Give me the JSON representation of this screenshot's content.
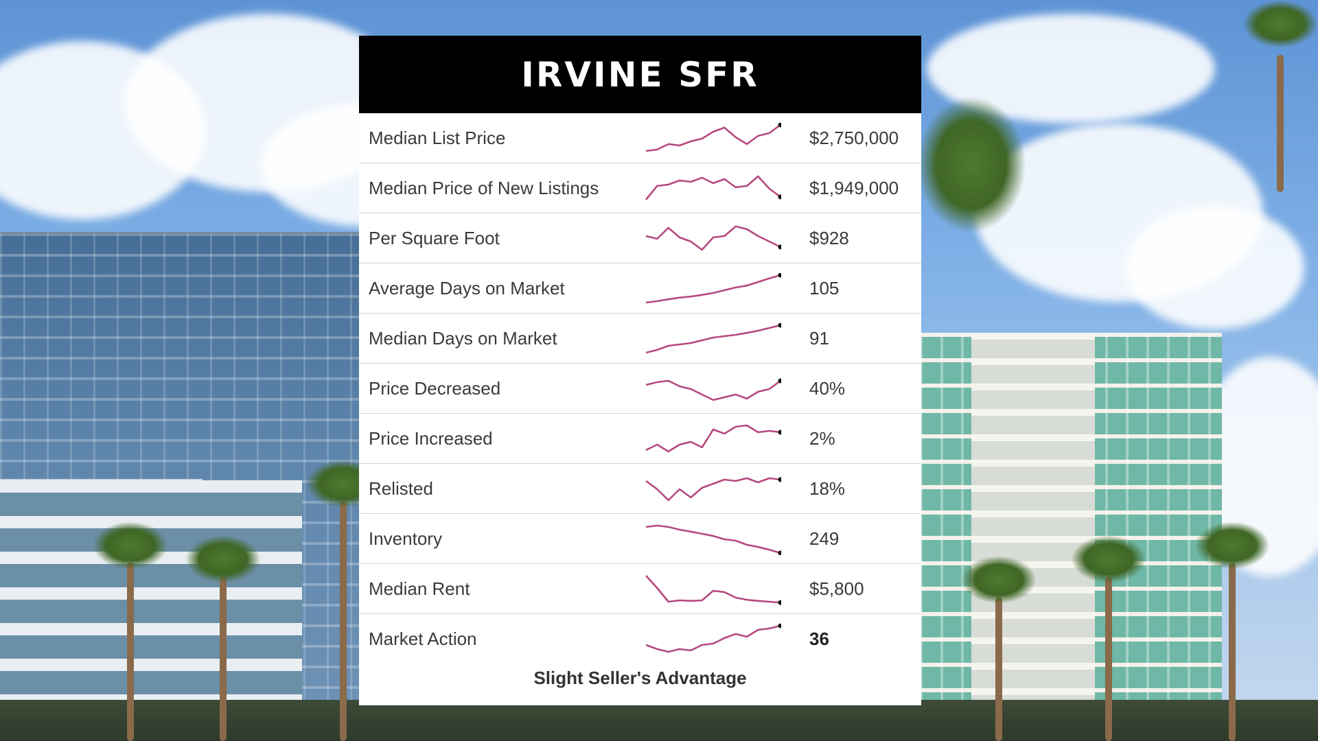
{
  "card": {
    "title": "IRVINE SFR",
    "footer": "Slight Seller's Advantage",
    "spark_color": "#b5487e",
    "rows": [
      {
        "label": "Median List Price",
        "value": "$2,750,000",
        "bold": false,
        "trend": [
          0.05,
          0.1,
          0.3,
          0.25,
          0.4,
          0.5,
          0.75,
          0.9,
          0.55,
          0.3,
          0.6,
          0.7,
          1.0
        ]
      },
      {
        "label": "Median Price of New Listings",
        "value": "$1,949,000",
        "bold": false,
        "trend": [
          0.1,
          0.6,
          0.65,
          0.8,
          0.75,
          0.9,
          0.7,
          0.85,
          0.55,
          0.6,
          0.95,
          0.5,
          0.2
        ]
      },
      {
        "label": "Per Square Foot",
        "value": "$928",
        "bold": false,
        "trend": [
          0.6,
          0.5,
          0.9,
          0.55,
          0.4,
          0.1,
          0.55,
          0.6,
          0.95,
          0.85,
          0.6,
          0.4,
          0.2
        ]
      },
      {
        "label": "Average Days on Market",
        "value": "105",
        "bold": false,
        "trend": [
          0.0,
          0.05,
          0.12,
          0.18,
          0.22,
          0.28,
          0.35,
          0.45,
          0.55,
          0.62,
          0.75,
          0.88,
          1.0
        ]
      },
      {
        "label": "Median Days on Market",
        "value": "91",
        "bold": false,
        "trend": [
          0.0,
          0.1,
          0.25,
          0.3,
          0.35,
          0.45,
          0.55,
          0.6,
          0.65,
          0.72,
          0.8,
          0.9,
          1.0
        ]
      },
      {
        "label": "Price Decreased",
        "value": "40%",
        "bold": false,
        "trend": [
          0.65,
          0.75,
          0.8,
          0.6,
          0.5,
          0.3,
          0.1,
          0.2,
          0.3,
          0.15,
          0.4,
          0.5,
          0.8
        ]
      },
      {
        "label": "Price Increased",
        "value": "2%",
        "bold": false,
        "trend": [
          0.1,
          0.3,
          0.05,
          0.3,
          0.4,
          0.2,
          0.85,
          0.7,
          0.95,
          1.0,
          0.75,
          0.8,
          0.75
        ]
      },
      {
        "label": "Relisted",
        "value": "18%",
        "bold": false,
        "trend": [
          0.8,
          0.5,
          0.1,
          0.5,
          0.2,
          0.55,
          0.7,
          0.85,
          0.8,
          0.9,
          0.75,
          0.9,
          0.85
        ]
      },
      {
        "label": "Inventory",
        "value": "249",
        "bold": false,
        "trend": [
          0.95,
          1.0,
          0.95,
          0.85,
          0.78,
          0.7,
          0.62,
          0.5,
          0.45,
          0.3,
          0.22,
          0.12,
          0.0
        ]
      },
      {
        "label": "Median Rent",
        "value": "$5,800",
        "bold": false,
        "trend": [
          1.0,
          0.55,
          0.05,
          0.1,
          0.08,
          0.1,
          0.45,
          0.4,
          0.2,
          0.12,
          0.08,
          0.05,
          0.02
        ]
      },
      {
        "label": "Market Action",
        "value": "36",
        "bold": true,
        "trend": [
          0.3,
          0.15,
          0.05,
          0.15,
          0.1,
          0.3,
          0.35,
          0.55,
          0.7,
          0.6,
          0.85,
          0.9,
          1.0
        ]
      }
    ]
  }
}
